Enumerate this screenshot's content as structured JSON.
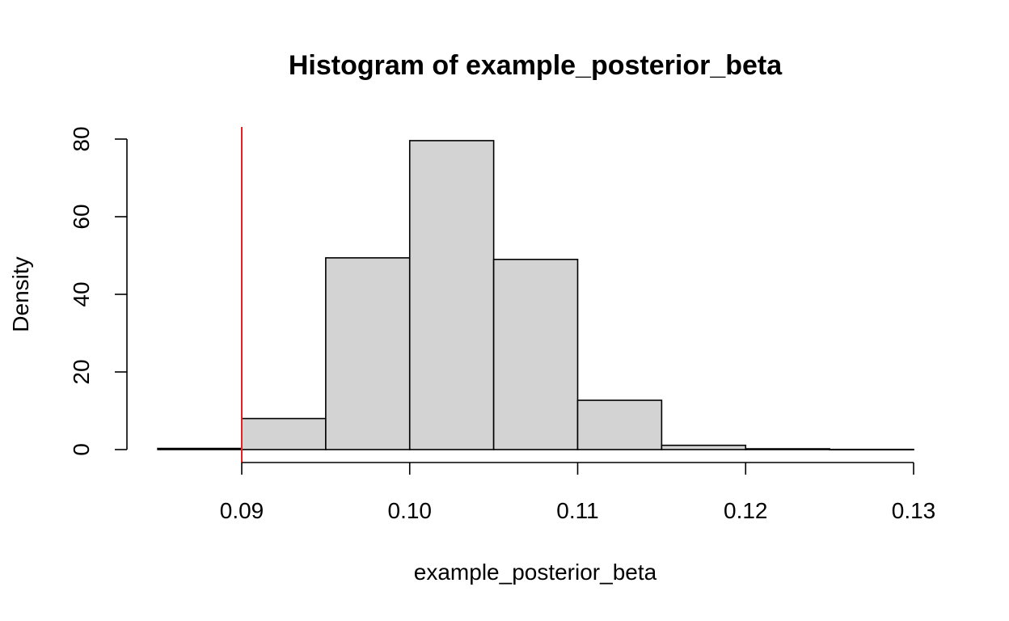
{
  "chart_data": {
    "type": "bar",
    "title": "Histogram of example_posterior_beta",
    "xlabel": "example_posterior_beta",
    "ylabel": "Density",
    "xlim": [
      0.085,
      0.13
    ],
    "ylim": [
      0,
      80
    ],
    "x_ticks": [
      0.09,
      0.1,
      0.11,
      0.12,
      0.13
    ],
    "x_tick_labels": [
      "0.09",
      "0.10",
      "0.11",
      "0.12",
      "0.13"
    ],
    "y_ticks": [
      0,
      20,
      40,
      60,
      80
    ],
    "y_tick_labels": [
      "0",
      "20",
      "40",
      "60",
      "80"
    ],
    "bins": [
      {
        "x0": 0.085,
        "x1": 0.09,
        "density": 0.3
      },
      {
        "x0": 0.09,
        "x1": 0.095,
        "density": 8.0
      },
      {
        "x0": 0.095,
        "x1": 0.1,
        "density": 49.4
      },
      {
        "x0": 0.1,
        "x1": 0.105,
        "density": 79.6
      },
      {
        "x0": 0.105,
        "x1": 0.11,
        "density": 49.0
      },
      {
        "x0": 0.11,
        "x1": 0.115,
        "density": 12.7
      },
      {
        "x0": 0.115,
        "x1": 0.12,
        "density": 1.1
      },
      {
        "x0": 0.12,
        "x1": 0.125,
        "density": 0.2
      },
      {
        "x0": 0.125,
        "x1": 0.13,
        "density": 0.05
      }
    ],
    "bar_fill": "#d3d3d3",
    "bar_stroke": "#000000",
    "reference_line": {
      "x": 0.09,
      "color": "#e8201f"
    },
    "grid": false,
    "legend": "none"
  }
}
